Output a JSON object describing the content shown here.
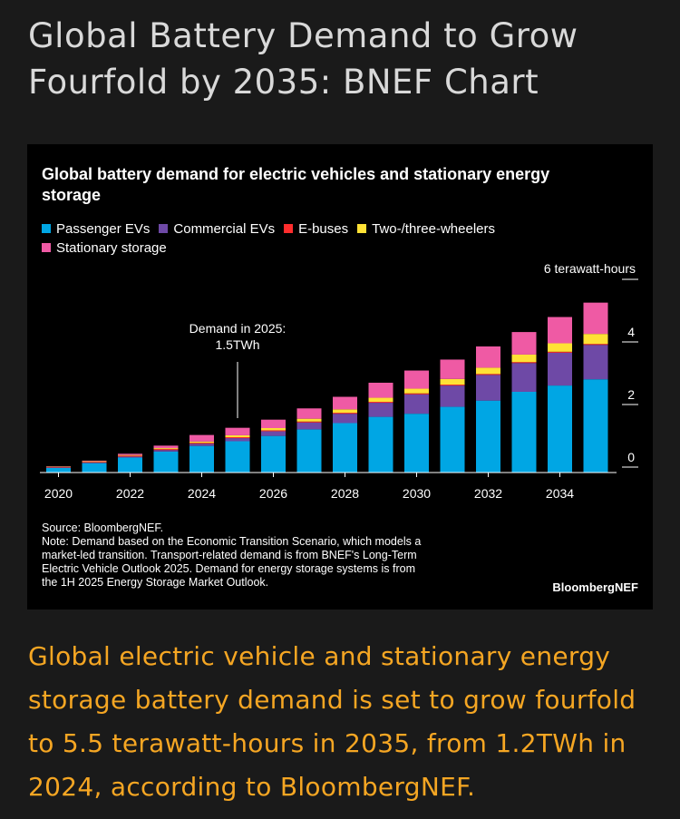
{
  "headline": "Global Battery Demand to Grow Fourfold by 2035: BNEF Chart",
  "caption": "Global electric vehicle and stationary energy storage battery demand is set to grow fourfold to 5.5 terawatt-hours in 2035, from 1.2TWh in 2024, according to BloombergNEF.",
  "brand": "BloombergNEF",
  "source_lines": [
    "Source: BloombergNEF.",
    "Note: Demand based on the Economic Transition Scenario, which models a",
    "market-led transition. Transport-related demand is from BNEF's Long-Term",
    "Electric Vehicle Outlook 2025. Demand for energy storage systems is from",
    "the 1H 2025 Energy Storage Market Outlook."
  ],
  "colors": {
    "Passenger EVs": "#00a6e4",
    "Commercial EVs": "#6e49a6",
    "E-buses": "#ff2d2d",
    "Two-/three-wheelers": "#ffe135",
    "Stationary storage": "#ef5aa4"
  },
  "chart_data": {
    "type": "bar",
    "stacked": true,
    "title": "Global battery demand for electric vehicles and stationary energy storage",
    "ylabel": "6 terawatt-hours",
    "ylim": [
      0,
      6
    ],
    "yticks": [
      0,
      2,
      4
    ],
    "xticks": [
      "2020",
      "2022",
      "2024",
      "2026",
      "2028",
      "2030",
      "2032",
      "2034"
    ],
    "categories": [
      "2020",
      "2021",
      "2022",
      "2023",
      "2024",
      "2025",
      "2026",
      "2027",
      "2028",
      "2029",
      "2030",
      "2031",
      "2032",
      "2033",
      "2034",
      "2035"
    ],
    "series": [
      {
        "name": "Passenger EVs",
        "values": [
          0.15,
          0.3,
          0.48,
          0.67,
          0.85,
          1.0,
          1.17,
          1.38,
          1.58,
          1.78,
          1.88,
          2.1,
          2.3,
          2.58,
          2.78,
          2.98
        ]
      },
      {
        "name": "Commercial EVs",
        "values": [
          0.01,
          0.02,
          0.03,
          0.05,
          0.07,
          0.1,
          0.15,
          0.22,
          0.3,
          0.45,
          0.62,
          0.68,
          0.82,
          0.92,
          1.05,
          1.1
        ]
      },
      {
        "name": "E-buses",
        "values": [
          0.02,
          0.02,
          0.03,
          0.03,
          0.03,
          0.03,
          0.03,
          0.03,
          0.03,
          0.03,
          0.03,
          0.03,
          0.03,
          0.03,
          0.03,
          0.03
        ]
      },
      {
        "name": "Two-/three-wheelers",
        "values": [
          0.01,
          0.02,
          0.02,
          0.03,
          0.04,
          0.06,
          0.07,
          0.09,
          0.11,
          0.13,
          0.15,
          0.18,
          0.2,
          0.24,
          0.27,
          0.32
        ]
      },
      {
        "name": "Stationary storage",
        "values": [
          0.01,
          0.02,
          0.04,
          0.08,
          0.21,
          0.24,
          0.27,
          0.33,
          0.4,
          0.48,
          0.58,
          0.62,
          0.68,
          0.72,
          0.84,
          1.0
        ]
      }
    ],
    "annotation": {
      "text_lines": [
        "Demand in 2025:",
        "1.5TWh"
      ],
      "category": "2025"
    },
    "legend_position": "top-left",
    "grid": false
  }
}
